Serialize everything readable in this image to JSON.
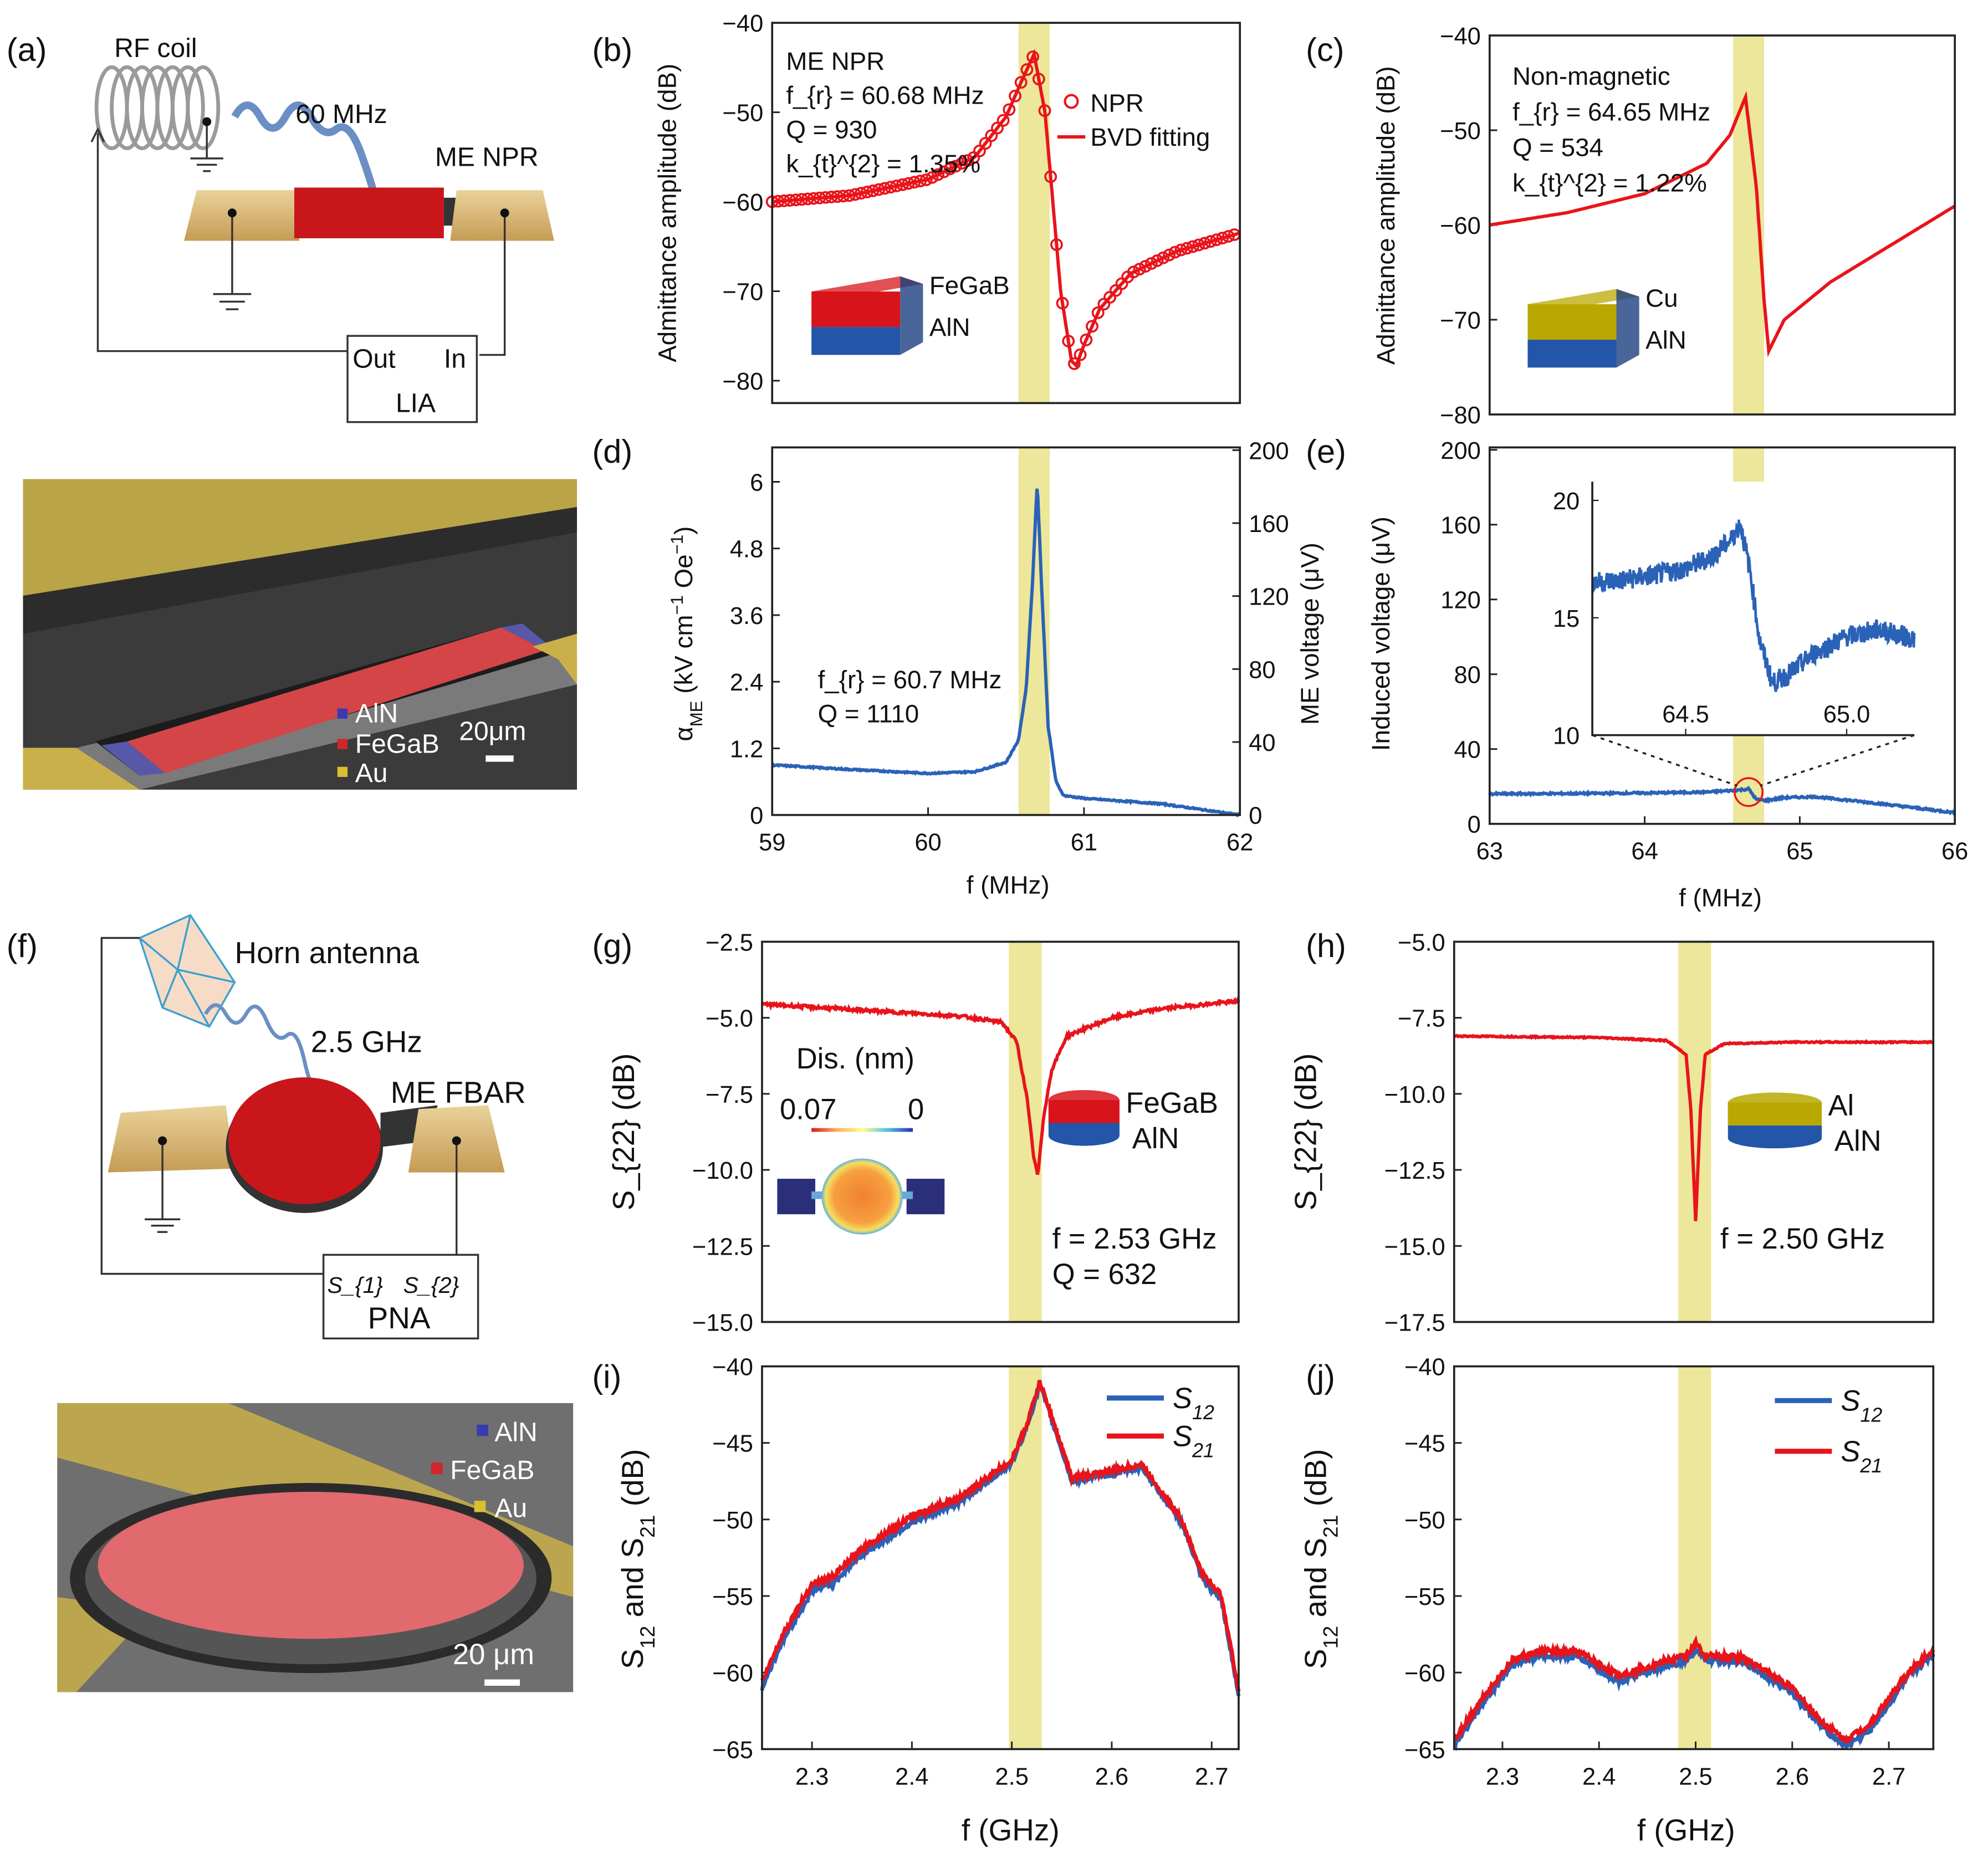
{
  "panels": {
    "a": "(a)",
    "b": "(b)",
    "c": "(c)",
    "d": "(d)",
    "e": "(e)",
    "f": "(f)",
    "g": "(g)",
    "h": "(h)",
    "i": "(i)",
    "j": "(j)"
  },
  "colors": {
    "red": "#e8141b",
    "blue": "#2a62b8",
    "band": "#ece79a",
    "gold": "#d9b76a",
    "navy": "#2b2f7a"
  },
  "schematics": {
    "a": {
      "coil": "RF coil",
      "freq": "60 MHz",
      "device": "ME NPR",
      "out": "Out",
      "in": "In",
      "instrument": "LIA",
      "sem_legend": [
        "AlN",
        "FeGaB",
        "Au"
      ],
      "scale": "20μm"
    },
    "f": {
      "antenna": "Horn antenna",
      "freq": "2.5 GHz",
      "device": "ME FBAR",
      "port1": "S_{1}",
      "port2": "S_{2}",
      "instrument": "PNA",
      "sem_legend": [
        "AlN",
        "FeGaB",
        "Au"
      ],
      "scale": "20 μm"
    }
  },
  "chart_data": [
    {
      "panel": "b",
      "type": "line",
      "xlim": [
        59,
        62
      ],
      "ylim": [
        -82.5,
        -40
      ],
      "yticks": [
        -40,
        -50,
        -60,
        -70,
        -80
      ],
      "ytick_labels": [
        "−40",
        "−50",
        "−60",
        "−70",
        "−80"
      ],
      "xticks": [],
      "xtick_labels": [],
      "ylabel": "Admittance amplitude (dB)",
      "xlabel": "",
      "highlight": [
        60.58,
        60.78
      ],
      "annotations": [
        "ME NPR",
        "f_{r} = 60.68 MHz",
        "Q = 930",
        "k_{t}^{2} = 1.35%"
      ],
      "inset_labels": [
        "FeGaB",
        "AlN"
      ],
      "legend": [
        "NPR",
        "BVD fitting"
      ],
      "series": [
        {
          "name": "NPR",
          "color": "#e8141b",
          "style": "markers",
          "x": [
            59,
            59.5,
            60,
            60.3,
            60.5,
            60.6,
            60.68,
            60.75,
            60.8,
            60.85,
            60.92,
            60.95,
            61.0,
            61.1,
            61.3,
            61.6,
            62
          ],
          "y": [
            -60,
            -59.3,
            -57.5,
            -55,
            -50.5,
            -46.5,
            -43.5,
            -50,
            -60,
            -70,
            -77.8,
            -78.3,
            -76,
            -72,
            -68,
            -65.5,
            -63.5
          ]
        },
        {
          "name": "BVD fitting",
          "color": "#e8141b",
          "style": "line",
          "x": [
            59,
            59.5,
            60,
            60.3,
            60.5,
            60.6,
            60.68,
            60.75,
            60.8,
            60.85,
            60.92,
            60.95,
            61.0,
            61.1,
            61.3,
            61.6,
            62
          ],
          "y": [
            -60,
            -59.3,
            -57.5,
            -55,
            -50.5,
            -46.5,
            -43.5,
            -50,
            -60,
            -70,
            -77.8,
            -78.3,
            -76,
            -72,
            -68,
            -65.5,
            -63.5
          ]
        }
      ]
    },
    {
      "panel": "c",
      "type": "line",
      "xlim": [
        63,
        66
      ],
      "ylim": [
        -80,
        -40
      ],
      "yticks": [
        -40,
        -50,
        -60,
        -70,
        -80
      ],
      "ytick_labels": [
        "−40",
        "−50",
        "−60",
        "−70",
        "−80"
      ],
      "xticks": [],
      "xtick_labels": [],
      "ylabel": "Admittance amplitude (dB)",
      "xlabel": "",
      "highlight": [
        64.57,
        64.77
      ],
      "annotations": [
        "Non-magnetic",
        "f_{r} = 64.65 MHz",
        "Q = 534",
        "k_{t}^{2} = 1.22%"
      ],
      "inset_labels": [
        "Cu",
        "AlN"
      ],
      "series": [
        {
          "name": "Non-magnetic",
          "color": "#e8141b",
          "style": "line",
          "x": [
            63,
            63.5,
            64,
            64.4,
            64.55,
            64.65,
            64.72,
            64.77,
            64.8,
            64.9,
            65.2,
            65.5,
            66
          ],
          "y": [
            -60,
            -58.7,
            -56.7,
            -53.5,
            -50.5,
            -46.5,
            -56,
            -68,
            -73.3,
            -70,
            -66,
            -63,
            -58
          ]
        }
      ]
    },
    {
      "panel": "d",
      "type": "line",
      "xlim": [
        59,
        62
      ],
      "ylim": [
        0,
        6.62
      ],
      "ylim_right": [
        0,
        201.5
      ],
      "yticks": [
        0,
        1.2,
        2.4,
        3.6,
        4.8,
        6
      ],
      "ytick_labels": [
        "0",
        "1.2",
        "2.4",
        "3.6",
        "4.8",
        "6"
      ],
      "yticks_right": [
        0,
        40,
        80,
        120,
        160,
        200
      ],
      "ytick_right_labels": [
        "0",
        "40",
        "80",
        "120",
        "160",
        "200"
      ],
      "xticks": [
        59,
        60,
        61,
        62
      ],
      "xtick_labels": [
        "59",
        "60",
        "61",
        "62"
      ],
      "ylabel": "α_{ME} (kV cm^{−1} Oe^{−1})",
      "ylabel_right": "ME voltage (μV)",
      "xlabel": "f (MHz)",
      "highlight": [
        60.58,
        60.78
      ],
      "annotations": [
        "f_{r} = 60.7 MHz",
        "Q = 1110"
      ],
      "series": [
        {
          "name": "alpha_ME",
          "color": "#2a62b8",
          "style": "line",
          "x": [
            59,
            59.5,
            60,
            60.3,
            60.5,
            60.58,
            60.63,
            60.67,
            60.7,
            60.73,
            60.77,
            60.82,
            60.87,
            61,
            61.5,
            62
          ],
          "y": [
            0.9,
            0.82,
            0.75,
            0.78,
            0.95,
            1.35,
            2.3,
            4.2,
            6.0,
            4.0,
            1.6,
            0.6,
            0.35,
            0.3,
            0.2,
            0.0
          ]
        }
      ]
    },
    {
      "panel": "e",
      "type": "line",
      "xlim": [
        63,
        66
      ],
      "ylim": [
        0,
        201.3
      ],
      "yticks": [
        0,
        40,
        80,
        120,
        160,
        200
      ],
      "ytick_labels": [
        "0",
        "40",
        "80",
        "120",
        "160",
        "200"
      ],
      "xticks": [
        63,
        64,
        65,
        66
      ],
      "xtick_labels": [
        "63",
        "64",
        "65",
        "66"
      ],
      "ylabel": "Induced voltage (μV)",
      "xlabel": "f (MHz)",
      "highlight": [
        64.57,
        64.77
      ],
      "series": [
        {
          "name": "Induced voltage",
          "color": "#2a62b8",
          "style": "line",
          "x": [
            63,
            63.5,
            64,
            64.4,
            64.6,
            64.67,
            64.72,
            64.78,
            64.9,
            65.1,
            65.5,
            66
          ],
          "y": [
            16,
            16.2,
            16.5,
            17,
            18,
            18.7,
            13,
            12.5,
            14,
            14.5,
            11,
            6
          ]
        }
      ],
      "inset": {
        "xlim": [
          64.21,
          65.21
        ],
        "ylim": [
          10,
          20.8
        ],
        "xticks": [
          64.5,
          65.0
        ],
        "xtick_labels": [
          "64.5",
          "65.0"
        ],
        "yticks": [
          10,
          15,
          20
        ],
        "ytick_labels": [
          "10",
          "15",
          "20"
        ],
        "series": {
          "x": [
            64.21,
            64.3,
            64.4,
            64.5,
            64.58,
            64.64,
            64.67,
            64.7,
            64.73,
            64.77,
            64.82,
            64.9,
            65.0,
            65.1,
            65.21
          ],
          "y": [
            16.5,
            16.6,
            16.8,
            17.1,
            17.6,
            18.3,
            19.0,
            17,
            14,
            12.2,
            12.6,
            13.5,
            14.2,
            14.5,
            14.1
          ]
        }
      }
    },
    {
      "panel": "g",
      "type": "line",
      "xlim": [
        2.25,
        2.727
      ],
      "ylim": [
        -15,
        -2.5
      ],
      "yticks": [
        -2.5,
        -5,
        -7.5,
        -10,
        -12.5,
        -15
      ],
      "ytick_labels": [
        "−2.5",
        "−5.0",
        "−7.5",
        "−10.0",
        "−12.5",
        "−15.0"
      ],
      "xticks": [],
      "xtick_labels": [],
      "ylabel": "S_{22} (dB)",
      "xlabel": "",
      "highlight": [
        2.497,
        2.53
      ],
      "annotations": [
        "f = 2.53 GHz",
        "Q = 632"
      ],
      "inset_labels": [
        "FeGaB",
        "AlN"
      ],
      "colormap": {
        "title": "Dis. (nm)",
        "max_label": "0.07",
        "min_label": "0"
      },
      "series": [
        {
          "name": "S22",
          "color": "#e8141b",
          "style": "line",
          "x": [
            2.25,
            2.35,
            2.45,
            2.49,
            2.505,
            2.515,
            2.522,
            2.526,
            2.532,
            2.54,
            2.555,
            2.6,
            2.65,
            2.727
          ],
          "y": [
            -4.55,
            -4.75,
            -4.95,
            -5.15,
            -5.8,
            -7.6,
            -9.6,
            -10.2,
            -8.2,
            -6.7,
            -5.6,
            -5.0,
            -4.7,
            -4.45
          ]
        }
      ]
    },
    {
      "panel": "h",
      "type": "line",
      "xlim": [
        2.25,
        2.746
      ],
      "ylim": [
        -17.5,
        -5
      ],
      "yticks": [
        -5,
        -7.5,
        -10,
        -12.5,
        -15,
        -17.5
      ],
      "ytick_labels": [
        "−5.0",
        "−7.5",
        "−10.0",
        "−12.5",
        "−15.0",
        "−17.5"
      ],
      "xticks": [],
      "xtick_labels": [],
      "ylabel": "S_{22} (dB)",
      "xlabel": "",
      "highlight": [
        2.482,
        2.516
      ],
      "annotations": [
        "f = 2.50 GHz"
      ],
      "inset_labels": [
        "Al",
        "AlN"
      ],
      "series": [
        {
          "name": "S22",
          "color": "#e8141b",
          "style": "line",
          "x": [
            2.25,
            2.4,
            2.47,
            2.49,
            2.495,
            2.5,
            2.505,
            2.51,
            2.53,
            2.6,
            2.746
          ],
          "y": [
            -8.1,
            -8.15,
            -8.25,
            -8.7,
            -10.5,
            -14.2,
            -10.5,
            -8.7,
            -8.35,
            -8.3,
            -8.3
          ]
        }
      ]
    },
    {
      "panel": "i",
      "type": "line",
      "xlim": [
        2.25,
        2.727
      ],
      "ylim": [
        -65,
        -40
      ],
      "yticks": [
        -40,
        -45,
        -50,
        -55,
        -60,
        -65
      ],
      "ytick_labels": [
        "−40",
        "−45",
        "−50",
        "−55",
        "−60",
        "−65"
      ],
      "xticks": [
        2.3,
        2.4,
        2.5,
        2.6,
        2.7
      ],
      "xtick_labels": [
        "2.3",
        "2.4",
        "2.5",
        "2.6",
        "2.7"
      ],
      "ylabel": "S_{12} and S_{21} (dB)",
      "xlabel": "f (GHz)",
      "highlight": [
        2.497,
        2.53
      ],
      "legend": [
        "S_{12}",
        "S_{21}"
      ],
      "series": [
        {
          "name": "S12",
          "color": "#2a62b8",
          "style": "line",
          "x": [
            2.25,
            2.27,
            2.3,
            2.32,
            2.35,
            2.4,
            2.45,
            2.5,
            2.515,
            2.528,
            2.54,
            2.56,
            2.6,
            2.63,
            2.67,
            2.69,
            2.71,
            2.727
          ],
          "y": [
            -61,
            -58,
            -54.7,
            -54.2,
            -52.3,
            -50.2,
            -48.8,
            -46.3,
            -44,
            -41.2,
            -43.5,
            -47.5,
            -47,
            -46.6,
            -50.2,
            -53.8,
            -55.3,
            -61.5
          ]
        },
        {
          "name": "S21",
          "color": "#e8141b",
          "style": "line",
          "x": [
            2.25,
            2.27,
            2.3,
            2.32,
            2.35,
            2.4,
            2.45,
            2.5,
            2.515,
            2.528,
            2.54,
            2.56,
            2.6,
            2.63,
            2.67,
            2.69,
            2.71,
            2.727
          ],
          "y": [
            -60.6,
            -57.6,
            -54.2,
            -53.8,
            -51.9,
            -49.8,
            -48.5,
            -46.1,
            -43.8,
            -41.0,
            -43.3,
            -47.3,
            -46.8,
            -46.4,
            -50,
            -53.5,
            -55,
            -61.2
          ]
        }
      ]
    },
    {
      "panel": "j",
      "type": "line",
      "xlim": [
        2.25,
        2.746
      ],
      "ylim": [
        -65,
        -40
      ],
      "yticks": [
        -40,
        -45,
        -50,
        -55,
        -60,
        -65
      ],
      "ytick_labels": [
        "−40",
        "−45",
        "−50",
        "−55",
        "−60",
        "−65"
      ],
      "xticks": [
        2.3,
        2.4,
        2.5,
        2.6,
        2.7
      ],
      "xtick_labels": [
        "2.3",
        "2.4",
        "2.5",
        "2.6",
        "2.7"
      ],
      "ylabel": "S_{12} and S_{21} (dB)",
      "xlabel": "f (GHz)",
      "highlight": [
        2.482,
        2.516
      ],
      "legend": [
        "S_{12}",
        "S_{21}"
      ],
      "series": [
        {
          "name": "S12",
          "color": "#2a62b8",
          "style": "line",
          "x": [
            2.25,
            2.28,
            2.31,
            2.34,
            2.38,
            2.42,
            2.46,
            2.49,
            2.5,
            2.51,
            2.55,
            2.6,
            2.63,
            2.655,
            2.68,
            2.72,
            2.746
          ],
          "y": [
            -64.8,
            -62,
            -59.5,
            -58.9,
            -59,
            -60.6,
            -59.8,
            -59.2,
            -58.5,
            -59.2,
            -59.3,
            -61.3,
            -63.5,
            -64.8,
            -63.8,
            -60.3,
            -58.8
          ]
        },
        {
          "name": "S21",
          "color": "#e8141b",
          "style": "line",
          "x": [
            2.25,
            2.28,
            2.31,
            2.34,
            2.38,
            2.42,
            2.46,
            2.49,
            2.5,
            2.51,
            2.55,
            2.6,
            2.63,
            2.655,
            2.68,
            2.72,
            2.746
          ],
          "y": [
            -64.4,
            -61.6,
            -59.2,
            -58.6,
            -58.7,
            -60.2,
            -59.4,
            -58.9,
            -58.1,
            -58.9,
            -59,
            -61,
            -63.2,
            -64.4,
            -63.4,
            -60,
            -58.5
          ]
        }
      ]
    }
  ]
}
